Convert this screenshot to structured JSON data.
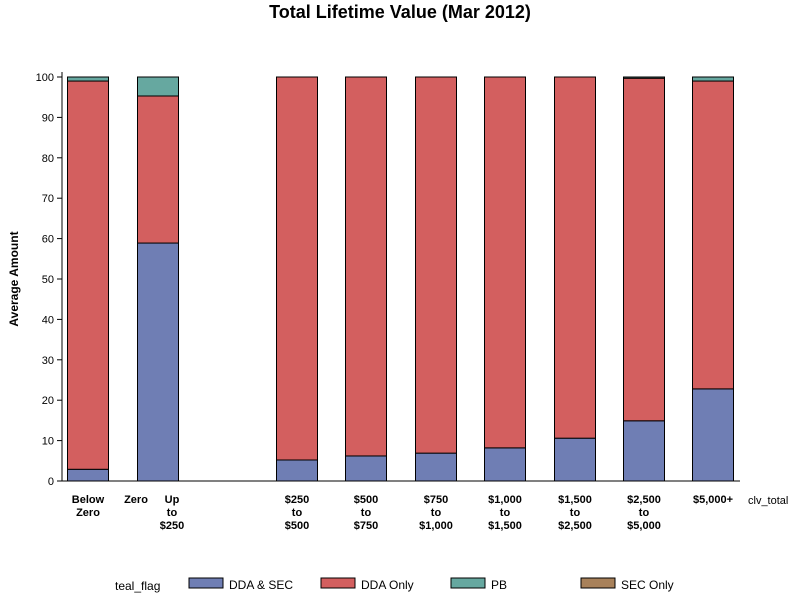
{
  "chart_data": {
    "type": "bar",
    "stacked": true,
    "title": "Total Lifetime Value (Mar 2012)",
    "xlabel": "clv_total",
    "ylabel": "Average Amount",
    "ylim": [
      0,
      100
    ],
    "yticks": [
      0,
      10,
      20,
      30,
      40,
      50,
      60,
      70,
      80,
      90,
      100
    ],
    "grid": false,
    "legend_title": "teal_flag",
    "legend_position": "bottom",
    "categories": [
      [
        "Below",
        "Zero"
      ],
      [
        "Zero"
      ],
      [
        "Up",
        "to",
        "$250"
      ],
      [
        "$250",
        "to",
        "$500"
      ],
      [
        "$500",
        "to",
        "$750"
      ],
      [
        "$750",
        "to",
        "$1,000"
      ],
      [
        "$1,000",
        "to",
        "$1,500"
      ],
      [
        "$1,500",
        "to",
        "$2,500"
      ],
      [
        "$2,500",
        "to",
        "$5,000"
      ],
      [
        "$5,000+"
      ]
    ],
    "series": [
      {
        "name": "DDA & SEC",
        "color": "#6f7eb4",
        "values": [
          2.9,
          null,
          58.9,
          5.2,
          6.2,
          6.9,
          8.2,
          10.6,
          14.9,
          22.8
        ]
      },
      {
        "name": "DDA Only",
        "color": "#d35f5f",
        "values": [
          96.1,
          null,
          36.4,
          94.8,
          93.8,
          93.1,
          91.8,
          89.4,
          84.8,
          76.2
        ]
      },
      {
        "name": "PB",
        "color": "#66a8a0",
        "values": [
          1.0,
          null,
          4.7,
          0,
          0,
          0,
          0,
          0,
          0.3,
          1.0
        ]
      },
      {
        "name": "SEC Only",
        "color": "#a8815a",
        "values": [
          0,
          null,
          0,
          0,
          0,
          0,
          0,
          0,
          0,
          0
        ]
      }
    ]
  }
}
